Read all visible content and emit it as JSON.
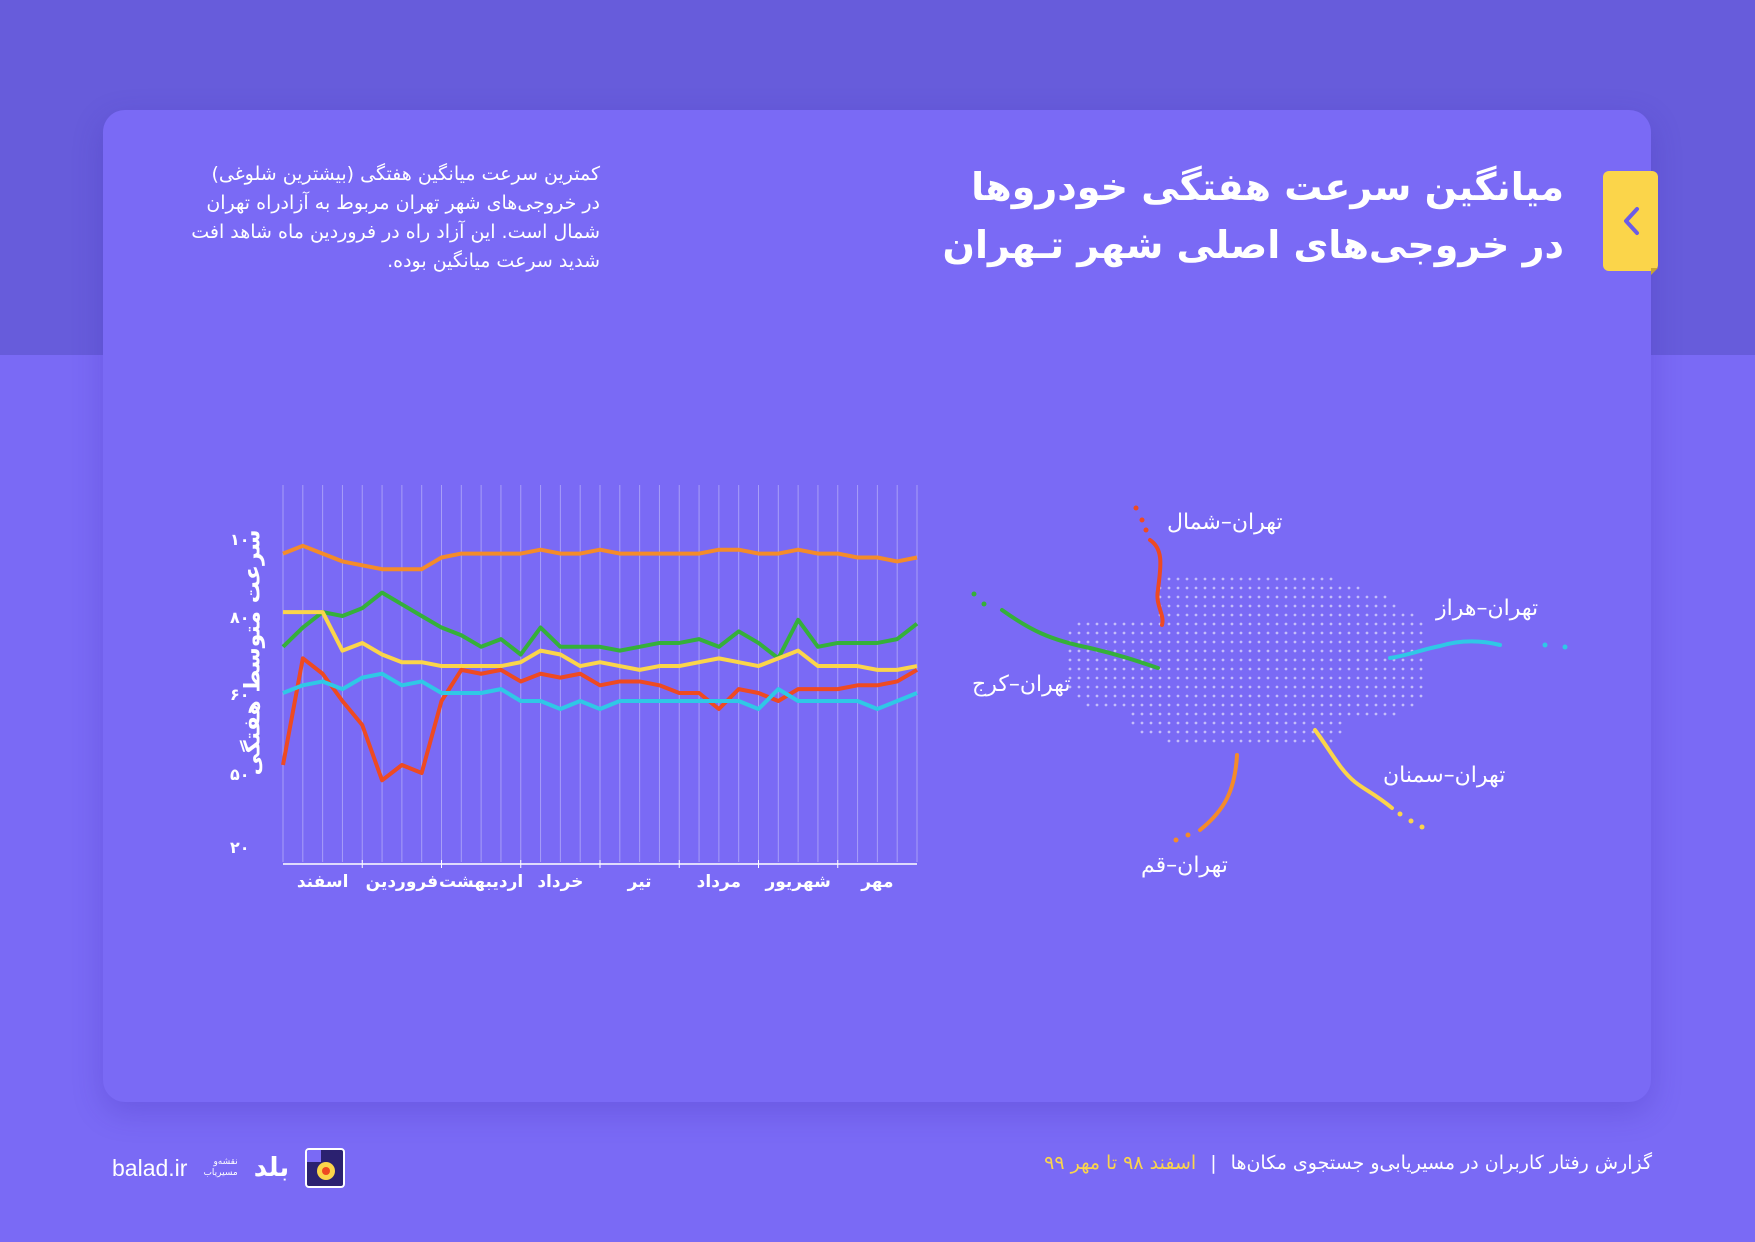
{
  "header": {
    "title_line1": "میانگین سرعت هفتگی خودروها",
    "title_line2": "در خروجی‌های اصلی شهر تـهران",
    "bookmark_icon": "chevron-left-icon"
  },
  "description": {
    "line1": "کمترین سرعت میانگین هفتگی (بیشترین شلوغی)",
    "line2": "در خروجی‌های شهر تهران مربوط به آزادراه تهران",
    "line3": "شمال است.  این آزاد راه در فروردین ماه شاهد افت",
    "line4": "شدید سرعت میانگین بوده."
  },
  "map": {
    "labels": {
      "north": "تهران–شمال",
      "karaj": "تهران–کرج",
      "haraz": "تهران–هراز",
      "semnan": "تهران–سمنان",
      "qom": "تهران–قم"
    }
  },
  "footer": {
    "report_title": "گزارش رفتار کاربران در مسیریابی‌و جستجوی مکان‌ها",
    "separator": "|",
    "date_range": "اسفند ۹۸ تا مهر ۹۹",
    "site": "balad.ir",
    "brand_name": "بلد",
    "brand_tagline_1": "نقشه‌و",
    "brand_tagline_2": "مسیریاب"
  },
  "colors": {
    "background": "#7a6af5",
    "top_band": "#675cdb",
    "accent_yellow": "#fbd54a",
    "north": "#ee4a22",
    "karaj": "#35b03a",
    "haraz": "#2fc8e6",
    "semnan": "#fbd54a",
    "qom": "#f48b2a"
  },
  "chart_data": {
    "type": "line",
    "title": "میانگین سرعت هفتگی خودروها در خروجی‌های اصلی شهر تهران",
    "xlabel": "",
    "ylabel": "سرعت متوسط هفتگی",
    "y_tick_labels": [
      "۱۰۰",
      "۸۰",
      "۶۰",
      "۵۰",
      "۲۰"
    ],
    "y_tick_values": [
      100,
      80,
      60,
      50,
      20
    ],
    "x_tick_labels": [
      "اسفند",
      "فروردین",
      "اردیبهشت",
      "خرداد",
      "تیر",
      "مرداد",
      "شهریور",
      "مهر"
    ],
    "grid": "vertical weekly lines",
    "legend": "labels on map (right side)",
    "weeks": 32,
    "series": [
      {
        "name": "تهران–قم",
        "color": "#f48b2a",
        "values": [
          96,
          98,
          96,
          94,
          93,
          92,
          92,
          92,
          95,
          96,
          96,
          96,
          96,
          97,
          96,
          96,
          97,
          96,
          96,
          96,
          96,
          96,
          97,
          97,
          96,
          96,
          97,
          96,
          96,
          95,
          95,
          94,
          95
        ]
      },
      {
        "name": "تهران–کرج",
        "color": "#35b03a",
        "values": [
          72,
          77,
          81,
          80,
          82,
          86,
          83,
          80,
          77,
          75,
          72,
          74,
          70,
          77,
          72,
          72,
          72,
          71,
          72,
          73,
          73,
          74,
          72,
          76,
          73,
          69,
          79,
          72,
          73,
          73,
          73,
          74,
          78
        ]
      },
      {
        "name": "تهران–سمنان",
        "color": "#fbd54a",
        "values": [
          81,
          81,
          81,
          71,
          73,
          70,
          68,
          68,
          67,
          67,
          67,
          67,
          68,
          71,
          70,
          67,
          68,
          67,
          66,
          67,
          67,
          68,
          69,
          68,
          67,
          69,
          71,
          67,
          67,
          67,
          66,
          66,
          67
        ]
      },
      {
        "name": "تهران–شمال",
        "color": "#ee4a22",
        "values": [
          51,
          69,
          65,
          59,
          56,
          47,
          51,
          50,
          59,
          66,
          65,
          66,
          63,
          65,
          64,
          65,
          62,
          63,
          63,
          62,
          60,
          60,
          58,
          61,
          60,
          59,
          61,
          61,
          61,
          62,
          62,
          63,
          66
        ]
      },
      {
        "name": "تهران–هراز",
        "color": "#2fc8e6",
        "values": [
          60,
          62,
          63,
          61,
          64,
          65,
          62,
          63,
          60,
          60,
          60,
          61,
          59,
          59,
          58,
          59,
          58,
          59,
          59,
          59,
          59,
          59,
          59,
          59,
          58,
          61,
          59,
          59,
          59,
          59,
          58,
          59,
          60
        ]
      }
    ]
  }
}
